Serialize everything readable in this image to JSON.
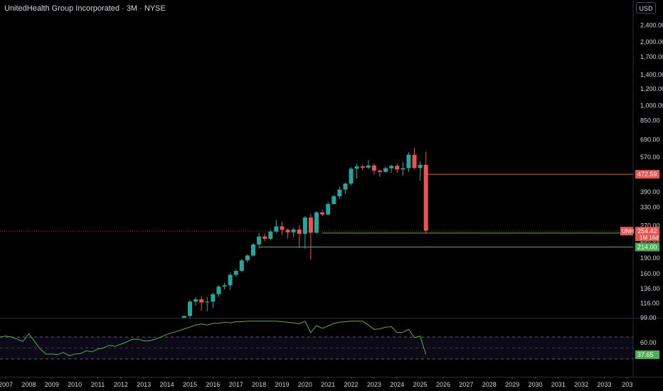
{
  "header": {
    "title": "UnitedHealth Group Incorporated · 3M · NYSE",
    "currency": "USD"
  },
  "colors": {
    "background": "#000000",
    "up": "#26a69a",
    "down": "#ef5350",
    "support": "#4caf50",
    "axis_text": "#d1d4dc"
  },
  "chart_data": [
    {
      "type": "candlestick",
      "scale": "log",
      "ylim": [
        99,
        2600
      ],
      "y_ticks": [
        "2,400.00",
        "2,000.00",
        "1,700.00",
        "1,400.00",
        "1,200.00",
        "1,000.00",
        "850.00",
        "690.00",
        "570.00",
        "470.00",
        "390.00",
        "330.00",
        "270.00",
        "230.00",
        "190.00",
        "160.00",
        "136.00",
        "116.00",
        "99.00"
      ],
      "x_ticks": [
        "2007",
        "2008",
        "2009",
        "2010",
        "2011",
        "2012",
        "2013",
        "2014",
        "2015",
        "2016",
        "2017",
        "2018",
        "2019",
        "2020",
        "2021",
        "2022",
        "2023",
        "2024",
        "2025",
        "2026",
        "2027",
        "2028",
        "2029",
        "2030",
        "2031",
        "2032",
        "2033",
        "203"
      ],
      "xlim": [
        2006.75,
        2034.25
      ],
      "series": [
        {
          "candles": [
            {
              "x": 2014.75,
              "o": 94,
              "h": 101,
              "l": 92,
              "c": 101
            },
            {
              "x": 2015.0,
              "o": 101,
              "h": 120,
              "l": 98,
              "c": 118
            },
            {
              "x": 2015.25,
              "o": 118,
              "h": 124,
              "l": 113,
              "c": 121
            },
            {
              "x": 2015.5,
              "o": 121,
              "h": 126,
              "l": 107,
              "c": 117
            },
            {
              "x": 2015.75,
              "o": 117,
              "h": 124,
              "l": 106,
              "c": 118
            },
            {
              "x": 2016.0,
              "o": 118,
              "h": 130,
              "l": 110,
              "c": 128
            },
            {
              "x": 2016.25,
              "o": 128,
              "h": 141,
              "l": 124,
              "c": 139
            },
            {
              "x": 2016.5,
              "o": 139,
              "h": 145,
              "l": 135,
              "c": 141
            },
            {
              "x": 2016.75,
              "o": 141,
              "h": 162,
              "l": 134,
              "c": 158
            },
            {
              "x": 2017.0,
              "o": 158,
              "h": 168,
              "l": 155,
              "c": 165
            },
            {
              "x": 2017.25,
              "o": 165,
              "h": 187,
              "l": 162,
              "c": 185
            },
            {
              "x": 2017.5,
              "o": 185,
              "h": 198,
              "l": 180,
              "c": 195
            },
            {
              "x": 2017.75,
              "o": 195,
              "h": 224,
              "l": 193,
              "c": 220
            },
            {
              "x": 2018.0,
              "o": 220,
              "h": 250,
              "l": 210,
              "c": 240
            },
            {
              "x": 2018.25,
              "o": 240,
              "h": 248,
              "l": 228,
              "c": 234
            },
            {
              "x": 2018.5,
              "o": 234,
              "h": 260,
              "l": 230,
              "c": 253
            },
            {
              "x": 2018.75,
              "o": 253,
              "h": 288,
              "l": 249,
              "c": 268
            },
            {
              "x": 2019.0,
              "o": 268,
              "h": 282,
              "l": 244,
              "c": 258
            },
            {
              "x": 2019.25,
              "o": 258,
              "h": 262,
              "l": 235,
              "c": 251
            },
            {
              "x": 2019.5,
              "o": 251,
              "h": 264,
              "l": 238,
              "c": 259
            },
            {
              "x": 2019.75,
              "o": 259,
              "h": 272,
              "l": 212,
              "c": 247
            },
            {
              "x": 2020.0,
              "o": 247,
              "h": 300,
              "l": 210,
              "c": 295
            },
            {
              "x": 2020.25,
              "o": 295,
              "h": 306,
              "l": 187,
              "c": 250
            },
            {
              "x": 2020.5,
              "o": 250,
              "h": 316,
              "l": 248,
              "c": 312
            },
            {
              "x": 2020.75,
              "o": 312,
              "h": 320,
              "l": 300,
              "c": 305
            },
            {
              "x": 2021.0,
              "o": 305,
              "h": 350,
              "l": 302,
              "c": 342
            },
            {
              "x": 2021.25,
              "o": 342,
              "h": 378,
              "l": 339,
              "c": 372
            },
            {
              "x": 2021.5,
              "o": 372,
              "h": 412,
              "l": 360,
              "c": 400
            },
            {
              "x": 2021.75,
              "o": 400,
              "h": 431,
              "l": 381,
              "c": 427
            },
            {
              "x": 2022.0,
              "o": 427,
              "h": 510,
              "l": 418,
              "c": 502
            },
            {
              "x": 2022.25,
              "o": 502,
              "h": 530,
              "l": 450,
              "c": 515
            },
            {
              "x": 2022.5,
              "o": 515,
              "h": 525,
              "l": 495,
              "c": 508
            },
            {
              "x": 2022.75,
              "o": 508,
              "h": 553,
              "l": 500,
              "c": 520
            },
            {
              "x": 2023.0,
              "o": 520,
              "h": 532,
              "l": 470,
              "c": 492
            },
            {
              "x": 2023.25,
              "o": 492,
              "h": 498,
              "l": 460,
              "c": 485
            },
            {
              "x": 2023.5,
              "o": 485,
              "h": 515,
              "l": 482,
              "c": 505
            },
            {
              "x": 2023.75,
              "o": 505,
              "h": 525,
              "l": 480,
              "c": 518
            },
            {
              "x": 2024.0,
              "o": 518,
              "h": 530,
              "l": 480,
              "c": 498
            },
            {
              "x": 2024.25,
              "o": 498,
              "h": 540,
              "l": 465,
              "c": 505
            },
            {
              "x": 2024.5,
              "o": 505,
              "h": 600,
              "l": 485,
              "c": 585
            },
            {
              "x": 2024.75,
              "o": 585,
              "h": 630,
              "l": 500,
              "c": 506
            },
            {
              "x": 2025.0,
              "o": 506,
              "h": 545,
              "l": 440,
              "c": 524
            },
            {
              "x": 2025.25,
              "o": 524,
              "h": 605,
              "l": 248,
              "c": 256
            }
          ]
        }
      ],
      "levels": [
        {
          "value": 472.59,
          "label": "472.59",
          "color": "#ef5350",
          "x_start": 2025.25
        },
        {
          "value": 249.12,
          "label": "249.12",
          "color": "#4caf50",
          "x_start": 2020.75
        },
        {
          "value": 214.0,
          "label": "214.00",
          "color": "#4caf50",
          "x_start": 2018.0
        }
      ],
      "last_price": {
        "symbol": "UNH",
        "value": 254.42,
        "label": "254.42",
        "countdown": "1M 16d",
        "color": "#ef5350"
      }
    },
    {
      "type": "line",
      "indicator": "oscillator",
      "ylim": [
        0,
        100
      ],
      "y_ticks": [
        "60.00"
      ],
      "levels": [
        70,
        50,
        30
      ],
      "last_value": {
        "value": 37.65,
        "label": "37.65",
        "color": "#4caf50"
      },
      "series": [
        {
          "color": "#4caf50",
          "x": [
            2006.75,
            2007.0,
            2007.25,
            2007.5,
            2007.75,
            2008.0,
            2008.25,
            2008.5,
            2008.75,
            2009.0,
            2009.25,
            2009.5,
            2009.75,
            2010.0,
            2010.25,
            2010.5,
            2010.75,
            2011.0,
            2011.25,
            2011.5,
            2011.75,
            2012.0,
            2012.25,
            2012.5,
            2012.75,
            2013.0,
            2013.25,
            2013.5,
            2013.75,
            2014.0,
            2014.25,
            2014.5,
            2014.75,
            2015.0,
            2015.25,
            2015.5,
            2015.75,
            2016.0,
            2016.25,
            2016.5,
            2016.75,
            2017.0,
            2017.25,
            2017.5,
            2017.75,
            2018.0,
            2018.25,
            2018.5,
            2018.75,
            2019.0,
            2019.25,
            2019.5,
            2019.75,
            2020.0,
            2020.25,
            2020.5,
            2020.75,
            2021.0,
            2021.25,
            2021.5,
            2021.75,
            2022.0,
            2022.25,
            2022.5,
            2022.75,
            2023.0,
            2023.25,
            2023.5,
            2023.75,
            2024.0,
            2024.25,
            2024.5,
            2024.75,
            2025.0,
            2025.25
          ],
          "values": [
            70,
            72,
            70,
            66,
            62,
            76,
            62,
            48,
            39,
            39,
            38,
            42,
            36,
            39,
            40,
            45,
            43,
            48,
            50,
            55,
            53,
            57,
            61,
            66,
            66,
            63,
            63,
            66,
            70,
            75,
            78,
            81,
            85,
            88,
            92,
            94,
            92,
            95,
            95,
            97,
            96,
            98,
            98,
            99,
            99,
            99,
            99,
            99,
            99,
            98,
            97,
            96,
            94,
            99,
            78,
            91,
            86,
            90,
            95,
            97,
            98,
            99,
            99,
            99,
            92,
            84,
            85,
            88,
            89,
            78,
            79,
            84,
            69,
            72,
            38
          ]
        }
      ]
    }
  ]
}
